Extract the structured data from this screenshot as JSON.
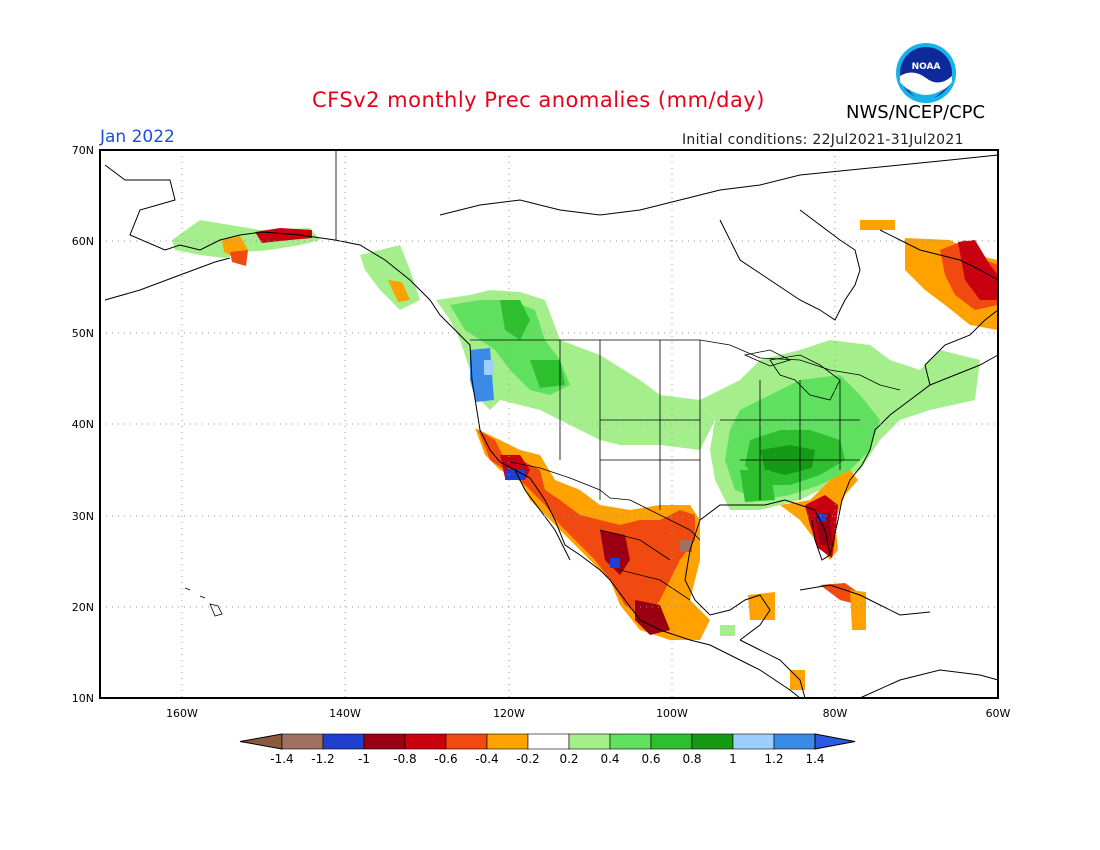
{
  "title": "CFSv2 monthly Prec anomalies (mm/day)",
  "month": "Jan 2022",
  "initial_conditions": "Initial conditions: 22Jul2021-31Jul2021",
  "agency": "NWS/NCEP/CPC",
  "logo_text": "NOAA",
  "lat_labels": [
    "70N",
    "60N",
    "50N",
    "40N",
    "30N",
    "20N",
    "10N"
  ],
  "lon_labels": [
    "160W",
    "140W",
    "120W",
    "100W",
    "80W",
    "60W"
  ],
  "colorbar": {
    "labels": [
      "-1.4",
      "-1.2",
      "-1",
      "-0.8",
      "-0.6",
      "-0.4",
      "-0.2",
      "0.2",
      "0.4",
      "0.6",
      "0.8",
      "1",
      "1.2",
      "1.4"
    ],
    "colors": [
      "#8b5a3c",
      "#a07060",
      "#1f3fd0",
      "#9a0012",
      "#c8000f",
      "#f04a10",
      "#ffa200",
      "#ffffff",
      "#a4ef8c",
      "#5fe05f",
      "#2ebf2e",
      "#169a16",
      "#9ccfff",
      "#3a8ae8",
      "#2a5ae0"
    ]
  },
  "chart_data": {
    "type": "heatmap",
    "title": "CFSv2 monthly Prec anomalies (mm/day)",
    "lon_range": [
      -170,
      -60
    ],
    "lat_range": [
      10,
      70
    ],
    "regions": [
      {
        "anomaly": 0.4,
        "region": "Pacific Northwest interior / northern Rockies"
      },
      {
        "anomaly": 0.4,
        "region": "Northern Plains"
      },
      {
        "anomaly": 0.6,
        "region": "Ohio / Tennessee valleys"
      },
      {
        "anomaly": 0.8,
        "region": "Mississippi-Tennessee core"
      },
      {
        "anomaly": 0.4,
        "region": "Great Lakes / Northeast"
      },
      {
        "anomaly": 1.2,
        "region": "Oregon / Washington coast"
      },
      {
        "anomaly": 0.4,
        "region": "Southern Alaska / Yukon"
      },
      {
        "anomaly": -0.6,
        "region": "Southern California"
      },
      {
        "anomaly": -0.4,
        "region": "Southwest / Baja"
      },
      {
        "anomaly": -0.6,
        "region": "Mexico"
      },
      {
        "anomaly": -0.8,
        "region": "Florida"
      },
      {
        "anomaly": -0.4,
        "region": "Labrador / Newfoundland"
      },
      {
        "anomaly": -0.6,
        "region": "Cuba"
      }
    ]
  }
}
